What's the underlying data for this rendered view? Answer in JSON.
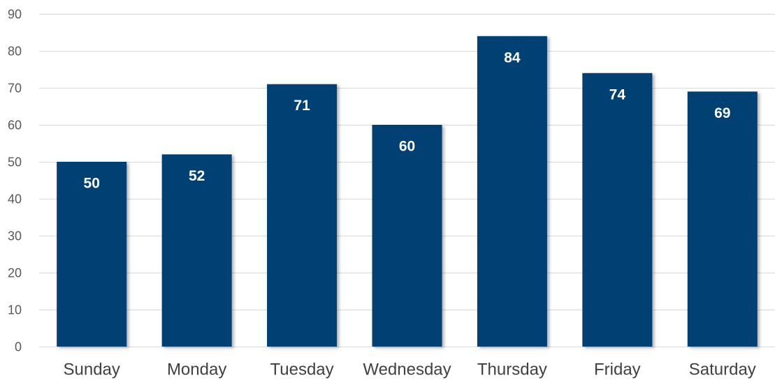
{
  "chart_data": {
    "type": "bar",
    "title": "",
    "xlabel": "",
    "ylabel": "",
    "categories": [
      "Sunday",
      "Monday",
      "Tuesday",
      "Wednesday",
      "Thursday",
      "Friday",
      "Saturday"
    ],
    "values": [
      50,
      52,
      71,
      60,
      84,
      74,
      69
    ],
    "ylim": [
      0,
      90
    ],
    "yticks": [
      0,
      10,
      20,
      30,
      40,
      50,
      60,
      70,
      80,
      90
    ],
    "grid": true,
    "legend": "none",
    "data_labels": "inside-top",
    "colors": {
      "bar": "#003f72",
      "bar_label": "#ffffff",
      "grid": "#d9d9d9"
    }
  }
}
